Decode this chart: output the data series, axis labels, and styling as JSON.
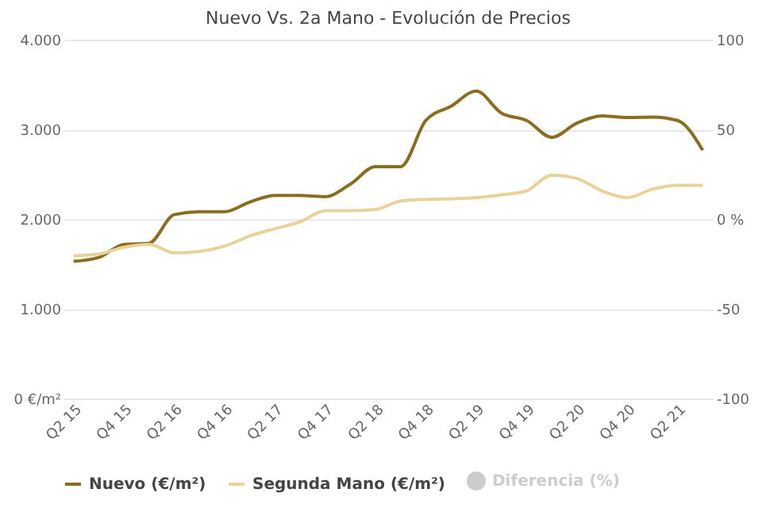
{
  "chart_data": {
    "type": "line",
    "title": "Nuevo Vs. 2a Mano - Evolución de Precios",
    "categories": [
      "Q2 15",
      null,
      "Q4 15",
      null,
      "Q2 16",
      null,
      "Q4 16",
      null,
      "Q2 17",
      null,
      "Q4 17",
      null,
      "Q2 18",
      null,
      "Q4 18",
      null,
      "Q2 19",
      null,
      "Q4 19",
      null,
      "Q2 20",
      null,
      "Q4 20",
      null,
      "Q2 21",
      null
    ],
    "series": [
      {
        "name": "Nuevo (€/m²)",
        "color": "#8a6d1f",
        "values": [
          1528,
          1572,
          1717,
          1730,
          2050,
          2082,
          2082,
          2190,
          2264,
          2264,
          2250,
          2390,
          2585,
          2585,
          3100,
          3258,
          3428,
          3182,
          3100,
          2912,
          3070,
          3150,
          3132,
          3138,
          3100,
          2767
        ]
      },
      {
        "name": "Segunda Mano (€/m²)",
        "color": "#e8d29a",
        "values": [
          1591,
          1610,
          1686,
          1717,
          1623,
          1640,
          1698,
          1811,
          1893,
          1969,
          2094,
          2094,
          2107,
          2201,
          2220,
          2226,
          2239,
          2270,
          2314,
          2490,
          2453,
          2314,
          2239,
          2333,
          2377,
          2377
        ]
      },
      {
        "name": "Diferencia (%)",
        "color": "#cccccc",
        "axis": "y2",
        "values": [
          null,
          null,
          null,
          null,
          null,
          null,
          null,
          null,
          null,
          null,
          null,
          null,
          null,
          null,
          null,
          null,
          null,
          null,
          null,
          null,
          null,
          null,
          null,
          null,
          null,
          null
        ]
      }
    ],
    "ylim": [
      0,
      4000
    ],
    "yticks": [
      {
        "value": 0,
        "label": "0 €/m²"
      },
      {
        "value": 1000,
        "label": "1.000"
      },
      {
        "value": 2000,
        "label": "2.000"
      },
      {
        "value": 3000,
        "label": "3.000"
      },
      {
        "value": 4000,
        "label": "4.000"
      }
    ],
    "y2lim": [
      -100,
      100
    ],
    "y2ticks": [
      -100,
      -50,
      {
        "value": 0,
        "label": "0 %"
      },
      50,
      100
    ],
    "grid": "y",
    "legend": "bottom",
    "line_style": "solid",
    "marker": "none"
  }
}
